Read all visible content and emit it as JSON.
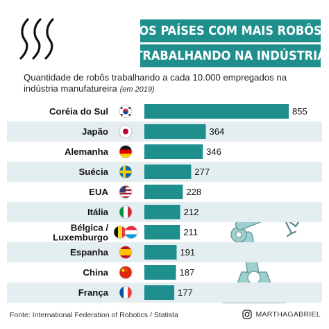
{
  "title": {
    "line1": "Os países com mais robôs",
    "line2": "trabalhando na indústria"
  },
  "subtitle": {
    "text": "Quantidade de robôs trabalhando a cada 10.000 empregados na indústria manufatureira",
    "year_note": "(em 2019)"
  },
  "source": "Fonte: International Federation of Robotics / Statista",
  "social": {
    "handle": "MARTHAGABRIEL",
    "icon": "instagram-icon"
  },
  "colors": {
    "bar": "#1f8f8e",
    "row_alt": "#e4eef0",
    "title_bg": "#1f8f8e",
    "robot": "#9ecfcf"
  },
  "chart_data": {
    "type": "bar",
    "orientation": "horizontal",
    "categories": [
      "Coréia do Sul",
      "Japão",
      "Alemanha",
      "Suécia",
      "EUA",
      "Itália",
      "Bélgica / Luxemburgo",
      "Espanha",
      "China",
      "França"
    ],
    "values": [
      855,
      364,
      346,
      277,
      228,
      212,
      211,
      191,
      187,
      177
    ],
    "flags": [
      "south-korea-flag",
      "japan-flag",
      "germany-flag",
      "sweden-flag",
      "usa-flag",
      "italy-flag",
      "belgium-luxembourg-flags",
      "spain-flag",
      "china-flag",
      "france-flag"
    ],
    "title": "",
    "xlabel": "",
    "ylabel": "",
    "grid": false,
    "legend": "none"
  }
}
